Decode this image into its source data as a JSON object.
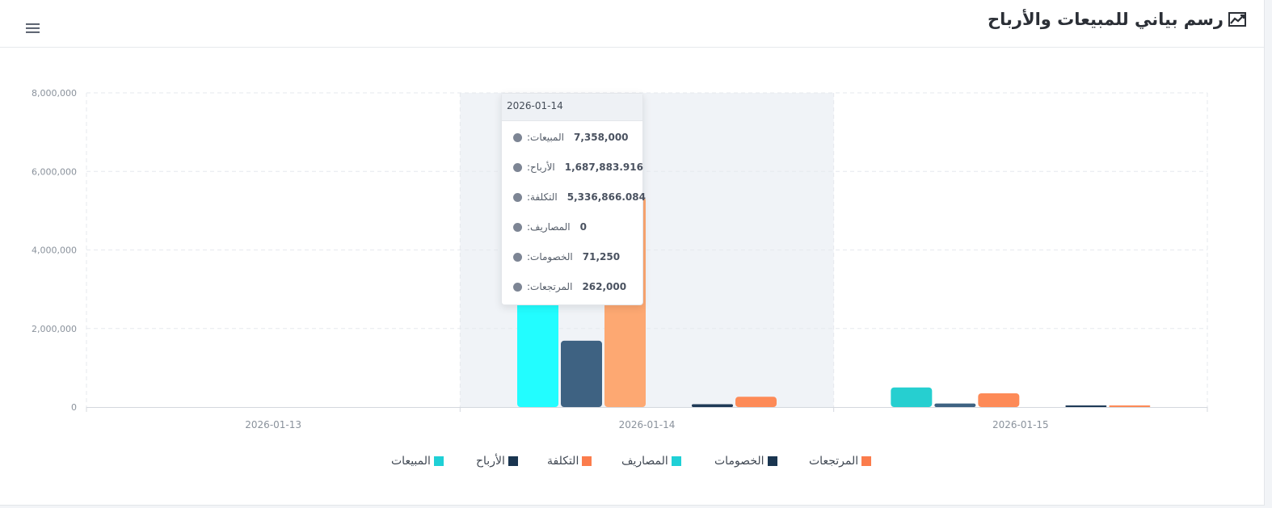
{
  "header": {
    "title": "رسم بياني للمبيعات والأرباح",
    "title_icon": "line-chart-icon",
    "menu_icon": "hamburger-menu-icon"
  },
  "tooltip": {
    "date": "2026-01-14",
    "rows": [
      {
        "name": ":المبيعات",
        "value": "7,358,000"
      },
      {
        "name": ":الأرباح",
        "value": "1,687,883.916"
      },
      {
        "name": ":التكلفة",
        "value": "5,336,866.084"
      },
      {
        "name": ":المصاريف",
        "value": "0"
      },
      {
        "name": ":الخصومات",
        "value": "71,250"
      },
      {
        "name": ":المرتجعات",
        "value": "262,000"
      }
    ]
  },
  "legend": [
    {
      "label": "المبيعات",
      "color": "#1fd0d6"
    },
    {
      "label": "الأرباح",
      "color": "#1a3550"
    },
    {
      "label": "التكلفة",
      "color": "#fb7c4c"
    },
    {
      "label": "المصاريف",
      "color": "#1fd0d6"
    },
    {
      "label": "الخصومات",
      "color": "#1a3550"
    },
    {
      "label": "المرتجعات",
      "color": "#fb7c4c"
    }
  ],
  "chart_data": {
    "type": "bar",
    "categories": [
      "2026-01-13",
      "2026-01-14",
      "2026-01-15"
    ],
    "series": [
      {
        "name": "المبيعات",
        "values": [
          0,
          7358000,
          500000
        ],
        "color": "#26cfd0"
      },
      {
        "name": "الأرباح",
        "values": [
          0,
          1687883.916,
          90000
        ],
        "color": "#3e6282"
      },
      {
        "name": "التكلفة",
        "values": [
          0,
          5336866.084,
          350000
        ],
        "color": "#fd8a57"
      },
      {
        "name": "المصاريف",
        "values": [
          0,
          0,
          0
        ],
        "color": "#26cfd0"
      },
      {
        "name": "الخصومات",
        "values": [
          0,
          71250,
          20000
        ],
        "color": "#1f3a57"
      },
      {
        "name": "المرتجعات",
        "values": [
          0,
          262000,
          30000
        ],
        "color": "#fd8a57"
      }
    ],
    "highlight_category": "2026-01-14",
    "highlight_colors": {
      "المبيعات": "#22fdff",
      "التكلفة": "#fda872"
    },
    "ylim": [
      0,
      8000000
    ],
    "yticks": [
      "0",
      "2,000,000",
      "4,000,000",
      "6,000,000",
      "8,000,000"
    ],
    "ytick_values": [
      0,
      2000000,
      4000000,
      6000000,
      8000000
    ],
    "grid": true,
    "legend_position": "bottom"
  }
}
